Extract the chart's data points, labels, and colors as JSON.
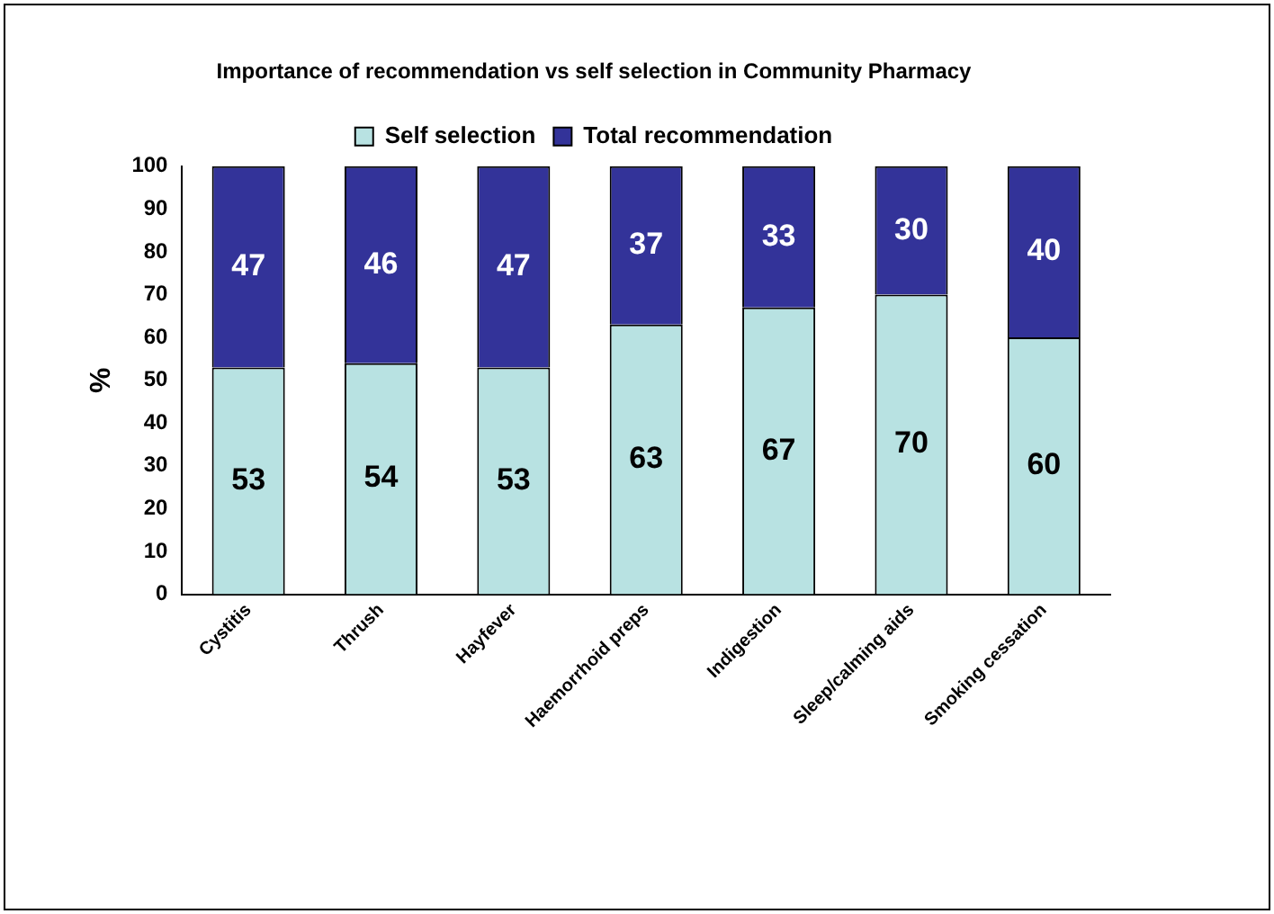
{
  "chart_data": {
    "type": "bar",
    "title": "Importance of recommendation vs self selection in Community Pharmacy",
    "ylabel": "%",
    "categories": [
      "Cystitis",
      "Thrush",
      "Hayfever",
      "Haemorrhoid preps",
      "Indigestion",
      "Sleep/calming aids",
      "Smoking cessation"
    ],
    "series": [
      {
        "name": "Self selection",
        "color": "#b8e2e2",
        "values": [
          53,
          54,
          53,
          63,
          67,
          70,
          60
        ]
      },
      {
        "name": "Total recommendation",
        "color": "#333399",
        "values": [
          47,
          46,
          47,
          37,
          33,
          30,
          40
        ]
      }
    ],
    "stacked": true,
    "ylim": [
      0,
      100
    ],
    "yticks": [
      0,
      10,
      20,
      30,
      40,
      50,
      60,
      70,
      80,
      90,
      100
    ],
    "grid": false,
    "legend": "top",
    "data_labels": true
  }
}
